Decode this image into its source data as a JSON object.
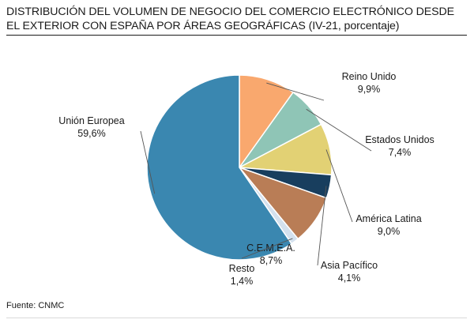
{
  "title": "DISTRIBUCIÓN DEL VOLUMEN DE NEGOCIO DEL COMERCIO ELECTRÓNICO DESDE EL EXTERIOR CON ESPAÑA POR ÁREAS GEOGRÁFICAS (IV-21, porcentaje)",
  "source": "Fuente: CNMC",
  "chart_data": {
    "type": "pie",
    "title": "DISTRIBUCIÓN DEL VOLUMEN DE NEGOCIO DEL COMERCIO ELECTRÓNICO DESDE EL EXTERIOR CON ESPAÑA POR ÁREAS GEOGRÁFICAS (IV-21, porcentaje)",
    "start": "12 o'clock",
    "direction": "clockwise",
    "slices": [
      {
        "label": "Reino Unido",
        "value": 9.9,
        "value_label": "9,9%",
        "color": "#f9a86e"
      },
      {
        "label": "Estados Unidos",
        "value": 7.4,
        "value_label": "7,4%",
        "color": "#8fc5b6"
      },
      {
        "label": "América Latina",
        "value": 9.0,
        "value_label": "9,0%",
        "color": "#e2d174"
      },
      {
        "label": "Asia Pacífico",
        "value": 4.1,
        "value_label": "4,1%",
        "color": "#183e5e"
      },
      {
        "label": "C.E.M.E.A.",
        "value": 8.7,
        "value_label": "8,7%",
        "color": "#b97d56"
      },
      {
        "label": "Resto",
        "value": 1.4,
        "value_label": "1,4%",
        "color": "#d4e1ee"
      },
      {
        "label": "Unión Europea",
        "value": 59.6,
        "value_label": "59,6%",
        "color": "#3a87b0"
      }
    ]
  }
}
